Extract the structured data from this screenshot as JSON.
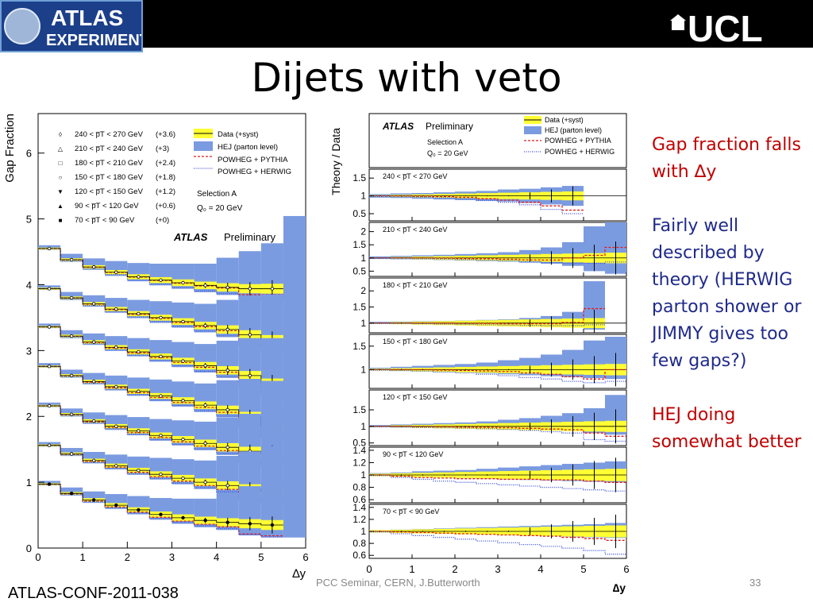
{
  "header": {
    "atlas_logo_top": "ATLAS",
    "atlas_logo_bottom": "EXPERIMENT",
    "ucl_logo": "UCL"
  },
  "slide": {
    "title": "Dijets with veto",
    "notes": [
      "Gap fraction falls with ∆y",
      "Fairly well described by theory (HERWIG parton shower or JIMMY gives too few gaps?)",
      "HEJ doing somewhat better"
    ],
    "reference": "ATLAS-CONF-2011-038",
    "footer": "PCC Seminar, CERN, J.Butterworth",
    "page_number": "33"
  },
  "colors": {
    "hej": "#7b9be0",
    "data_band": "#ffff33",
    "pythia": "#e41a1c",
    "herwig": "#3b4fd8"
  },
  "chart_data": [
    {
      "type": "line",
      "ylabel": "Gap Fraction",
      "xlabel": "∆y",
      "xlim": [
        0,
        6
      ],
      "ylim": [
        0,
        6.6
      ],
      "xticks": [
        "0",
        "1",
        "2",
        "3",
        "4",
        "5",
        "6"
      ],
      "yticks": [
        "0",
        "1",
        "2",
        "3",
        "4",
        "5",
        "6"
      ],
      "x_bins": [
        0,
        0.5,
        1,
        1.5,
        2,
        2.5,
        3,
        3.5,
        4,
        4.5,
        5,
        5.5,
        6
      ],
      "legend_series": [
        {
          "label": "240 < p̅T < 270 GeV",
          "offset": "(+3.6)",
          "marker": "◊"
        },
        {
          "label": "210 < p̅T < 240 GeV",
          "offset": "(+3)",
          "marker": "△"
        },
        {
          "label": "180 < p̅T < 210 GeV",
          "offset": "(+2.4)",
          "marker": "□"
        },
        {
          "label": "150 < p̅T < 180 GeV",
          "offset": "(+1.8)",
          "marker": "○"
        },
        {
          "label": "120 < p̅T < 150 GeV",
          "offset": "(+1.2)",
          "marker": "▼"
        },
        {
          "label": "90 < p̅T < 120 GeV",
          "offset": "(+0.6)",
          "marker": "▲"
        },
        {
          "label": "70 < p̅T < 90 GeV",
          "offset": "(+0)",
          "marker": "■"
        }
      ],
      "legend_models": [
        "Data (+syst)",
        "HEJ (parton level)",
        "POWHEG + PYTHIA",
        "POWHEG + HERWIG"
      ],
      "annotations": [
        "Selection A",
        "Q₀ = 20 GeV",
        "ATLAS",
        "Preliminary"
      ],
      "series": [
        {
          "name": "240 < p̅T < 270 GeV",
          "values": [
            4.55,
            4.38,
            4.27,
            4.19,
            4.12,
            4.07,
            4.03,
            3.99,
            3.96,
            3.94,
            3.94
          ]
        },
        {
          "name": "210 < p̅T < 240 GeV",
          "values": [
            3.94,
            3.8,
            3.71,
            3.63,
            3.56,
            3.5,
            3.44,
            3.38,
            3.32,
            3.24,
            3.16
          ]
        },
        {
          "name": "180 < p̅T < 210 GeV",
          "values": [
            3.36,
            3.22,
            3.13,
            3.05,
            2.98,
            2.91,
            2.84,
            2.77,
            2.7,
            2.62,
            2.5
          ]
        },
        {
          "name": "150 < p̅T < 180 GeV",
          "values": [
            2.76,
            2.62,
            2.53,
            2.45,
            2.38,
            2.31,
            2.24,
            2.17,
            2.1,
            2.0,
            1.85
          ]
        },
        {
          "name": "120 < p̅T < 150 GeV",
          "values": [
            2.16,
            2.03,
            1.93,
            1.85,
            1.78,
            1.71,
            1.65,
            1.59,
            1.53,
            1.47,
            1.43
          ]
        },
        {
          "name": "90 < p̅T < 120 GeV",
          "values": [
            1.56,
            1.43,
            1.33,
            1.25,
            1.18,
            1.12,
            1.06,
            1.0,
            0.95,
            0.9,
            0.86
          ]
        },
        {
          "name": "70 < p̅T < 90 GeV",
          "values": [
            0.97,
            0.83,
            0.73,
            0.65,
            0.58,
            0.51,
            0.46,
            0.42,
            0.39,
            0.37,
            0.35
          ]
        }
      ]
    },
    {
      "type": "line",
      "ylabel": "Theory / Data",
      "xlabel": "∆y",
      "xlim": [
        0,
        6
      ],
      "xticks": [
        "0",
        "1",
        "2",
        "3",
        "4",
        "5",
        "6"
      ],
      "legend_models": [
        "Data (+syst)",
        "HEJ (parton level)",
        "POWHEG + PYTHIA",
        "POWHEG + HERWIG"
      ],
      "annotations": [
        "ATLAS",
        "Preliminary",
        "Selection A",
        "Q₀ = 20 GeV"
      ],
      "panels": [
        {
          "label": "240 < p̅T < 270 GeV",
          "ylim": [
            0.3,
            1.75
          ],
          "yticks": [
            "0.5",
            "1",
            "1.5"
          ],
          "pythia": [
            1.0,
            1.0,
            0.99,
            0.98,
            0.96,
            0.92,
            0.88,
            0.82,
            0.72,
            0.6
          ],
          "herwig": [
            0.99,
            0.98,
            0.97,
            0.95,
            0.92,
            0.87,
            0.82,
            0.75,
            0.62,
            0.5
          ],
          "hej_hi": [
            1.05,
            1.07,
            1.08,
            1.1,
            1.12,
            1.14,
            1.18,
            1.2,
            1.24,
            1.28
          ],
          "hej_lo": [
            0.95,
            0.94,
            0.92,
            0.9,
            0.88,
            0.86,
            0.84,
            0.8,
            0.76,
            0.72
          ]
        },
        {
          "label": "210 < p̅T < 240 GeV",
          "ylim": [
            0.3,
            2.35
          ],
          "yticks": [
            "0.5",
            "1",
            "1.5",
            "2"
          ],
          "pythia": [
            1.0,
            1.0,
            1.0,
            0.99,
            0.98,
            0.97,
            0.95,
            0.93,
            0.92,
            1.0,
            1.1,
            1.4
          ],
          "herwig": [
            0.99,
            0.98,
            0.97,
            0.96,
            0.94,
            0.92,
            0.9,
            0.87,
            0.83,
            0.8,
            0.8,
            0.85
          ],
          "hej_hi": [
            1.06,
            1.08,
            1.1,
            1.12,
            1.15,
            1.18,
            1.22,
            1.3,
            1.4,
            1.6,
            2.2,
            2.5
          ],
          "hej_lo": [
            0.96,
            0.95,
            0.94,
            0.92,
            0.9,
            0.88,
            0.86,
            0.82,
            0.78,
            0.7,
            0.5,
            0.4
          ]
        },
        {
          "label": "180 < p̅T < 210 GeV",
          "ylim": [
            0.7,
            2.4
          ],
          "yticks": [
            "1",
            "1.5",
            "2"
          ],
          "pythia": [
            1.0,
            1.0,
            1.0,
            1.0,
            0.99,
            0.99,
            0.98,
            0.98,
            0.98,
            1.02,
            1.45
          ],
          "herwig": [
            0.99,
            0.99,
            0.98,
            0.97,
            0.96,
            0.95,
            0.94,
            0.93,
            0.92,
            0.92,
            0.95
          ],
          "hej_hi": [
            1.04,
            1.05,
            1.06,
            1.07,
            1.08,
            1.1,
            1.12,
            1.16,
            1.22,
            1.35,
            2.3
          ],
          "hej_lo": [
            0.98,
            0.97,
            0.96,
            0.95,
            0.94,
            0.93,
            0.92,
            0.9,
            0.88,
            0.86,
            0.8
          ]
        },
        {
          "label": "150 < p̅T < 180 GeV",
          "ylim": [
            0.6,
            1.75
          ],
          "yticks": [
            "1",
            "1.5"
          ],
          "pythia": [
            1.0,
            1.0,
            1.0,
            0.99,
            0.98,
            0.97,
            0.96,
            0.93,
            0.9,
            0.85,
            0.8,
            1.0
          ],
          "herwig": [
            0.99,
            0.98,
            0.97,
            0.95,
            0.93,
            0.9,
            0.87,
            0.83,
            0.8,
            0.75,
            0.72,
            0.75
          ],
          "hej_hi": [
            1.04,
            1.06,
            1.08,
            1.1,
            1.12,
            1.15,
            1.2,
            1.25,
            1.32,
            1.42,
            1.62,
            1.7
          ],
          "hej_lo": [
            0.98,
            0.97,
            0.96,
            0.95,
            0.94,
            0.92,
            0.9,
            0.88,
            0.86,
            0.84,
            0.82,
            0.8
          ]
        },
        {
          "label": "120 < p̅T < 150 GeV",
          "ylim": [
            0.42,
            2.1
          ],
          "yticks": [
            "0.5",
            "1",
            "1.5"
          ],
          "pythia": [
            1.0,
            1.0,
            0.99,
            0.99,
            0.98,
            0.97,
            0.96,
            0.94,
            0.92,
            0.9,
            0.8,
            0.7
          ],
          "herwig": [
            0.99,
            0.98,
            0.97,
            0.96,
            0.95,
            0.93,
            0.91,
            0.88,
            0.84,
            0.8,
            0.6,
            0.55
          ],
          "hej_hi": [
            1.04,
            1.06,
            1.08,
            1.1,
            1.12,
            1.15,
            1.2,
            1.25,
            1.32,
            1.4,
            1.55,
            1.95
          ],
          "hej_lo": [
            0.98,
            0.97,
            0.96,
            0.95,
            0.94,
            0.93,
            0.92,
            0.9,
            0.88,
            0.86,
            0.8,
            0.75
          ]
        },
        {
          "label": "90 < p̅T < 120 GeV",
          "ylim": [
            0.55,
            1.45
          ],
          "yticks": [
            "0.6",
            "0.8",
            "1",
            "1.2",
            "1.4"
          ],
          "pythia": [
            1.0,
            0.98,
            0.96,
            0.95,
            0.94,
            0.94,
            0.93,
            0.93,
            0.92,
            0.92,
            0.9,
            0.88
          ],
          "herwig": [
            0.99,
            0.96,
            0.93,
            0.9,
            0.88,
            0.86,
            0.84,
            0.82,
            0.8,
            0.78,
            0.76,
            0.74
          ],
          "hej_hi": [
            1.03,
            1.04,
            1.06,
            1.07,
            1.08,
            1.1,
            1.12,
            1.14,
            1.16,
            1.18,
            1.2,
            1.22
          ],
          "hej_lo": [
            0.99,
            0.98,
            0.97,
            0.96,
            0.95,
            0.94,
            0.93,
            0.92,
            0.91,
            0.9,
            0.89,
            0.88
          ]
        },
        {
          "label": "70 < p̅T < 90 GeV",
          "ylim": [
            0.55,
            1.45
          ],
          "yticks": [
            "0.6",
            "0.8",
            "1",
            "1.2",
            "1.4"
          ],
          "pythia": [
            1.0,
            0.99,
            0.98,
            0.97,
            0.96,
            0.95,
            0.94,
            0.93,
            0.92,
            0.9,
            0.88,
            0.85
          ],
          "herwig": [
            0.99,
            0.96,
            0.93,
            0.9,
            0.87,
            0.84,
            0.81,
            0.78,
            0.75,
            0.72,
            0.68,
            0.62
          ],
          "hej_hi": [
            1.02,
            1.03,
            1.04,
            1.05,
            1.06,
            1.07,
            1.08,
            1.09,
            1.1,
            1.11,
            1.12,
            1.14
          ],
          "hej_lo": [
            1.0,
            0.99,
            0.98,
            0.97,
            0.96,
            0.95,
            0.94,
            0.93,
            0.92,
            0.91,
            0.9,
            0.89
          ]
        }
      ]
    }
  ]
}
